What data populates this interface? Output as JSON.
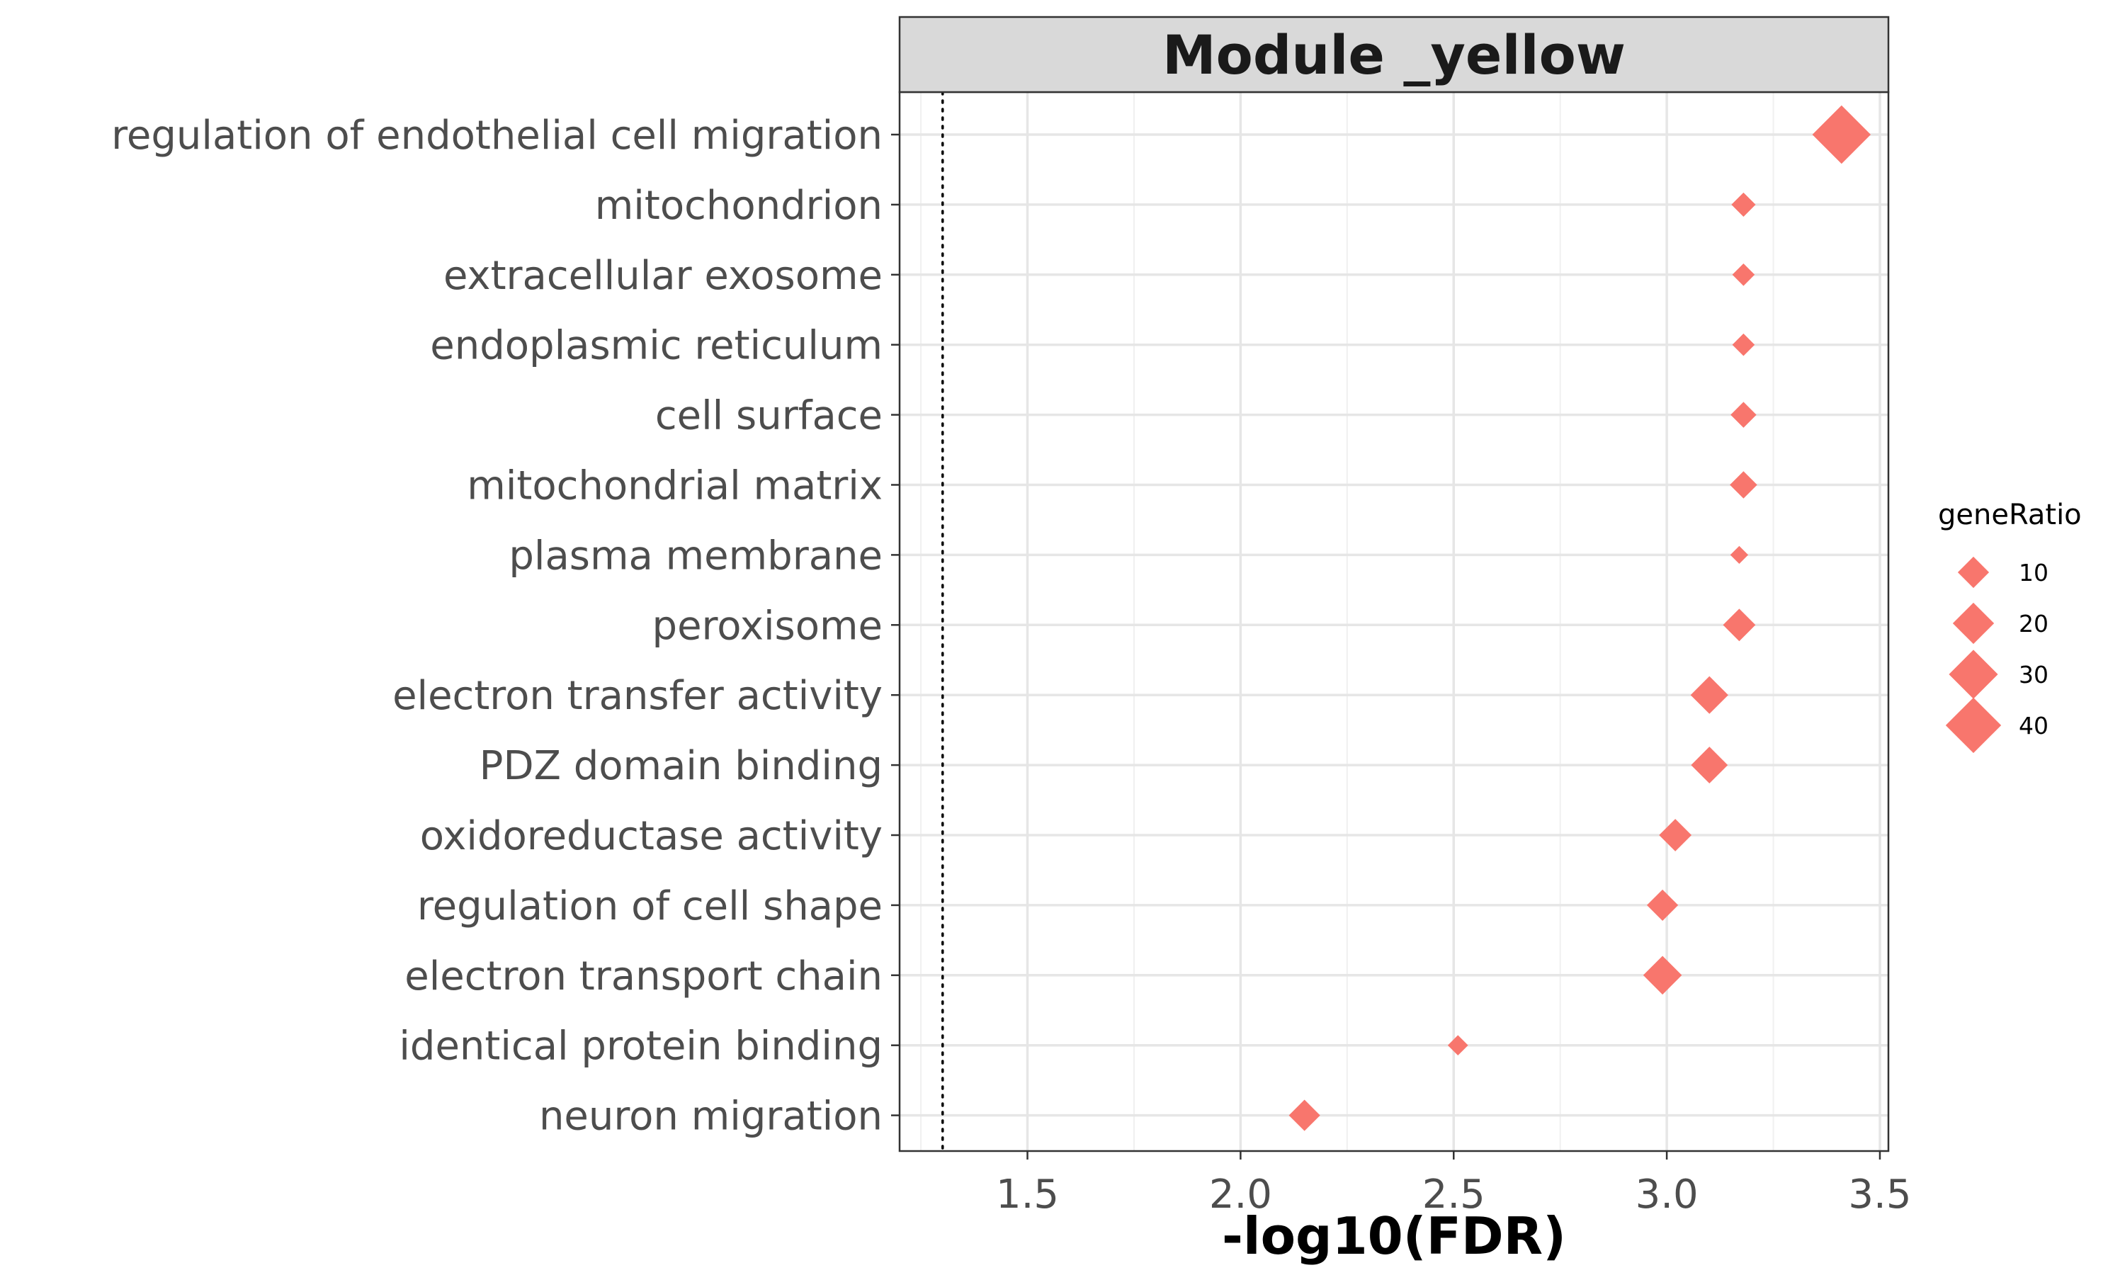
{
  "chart_data": {
    "type": "scatter",
    "title": "Module _yellow",
    "xlabel": "-log10(FDR)",
    "ylabel": "",
    "xlim": [
      1.2,
      3.52
    ],
    "x_ticks": [
      1.5,
      2.0,
      2.5,
      3.0,
      3.5
    ],
    "x_tick_labels": [
      "1.5",
      "2.0",
      "2.5",
      "3.0",
      "3.5"
    ],
    "reference_line": {
      "x": 1.301,
      "style": "dotted"
    },
    "grid": true,
    "point_shape": "diamond",
    "point_color": "#F8766D",
    "categories": [
      "regulation of endothelial cell migration",
      "mitochondrion",
      "extracellular exosome",
      "endoplasmic reticulum",
      "cell surface",
      "mitochondrial matrix",
      "plasma membrane",
      "peroxisome",
      "electron transfer activity",
      "PDZ domain binding",
      "oxidoreductase activity",
      "regulation of cell shape",
      "electron transport chain",
      "identical protein binding",
      "neuron migration"
    ],
    "series": [
      {
        "x": [
          3.41,
          3.18,
          3.18,
          3.18,
          3.18,
          3.18,
          3.17,
          3.17,
          3.1,
          3.1,
          3.02,
          2.99,
          2.99,
          2.51,
          2.15
        ],
        "geneRatio": [
          45,
          5,
          4,
          4,
          6,
          7,
          2,
          11,
          16,
          15,
          11,
          10,
          17,
          3,
          10
        ]
      }
    ],
    "legend": {
      "title": "geneRatio",
      "placement": "right",
      "values": [
        10,
        20,
        30,
        40
      ],
      "labels": [
        "10",
        "20",
        "30",
        "40"
      ]
    }
  }
}
